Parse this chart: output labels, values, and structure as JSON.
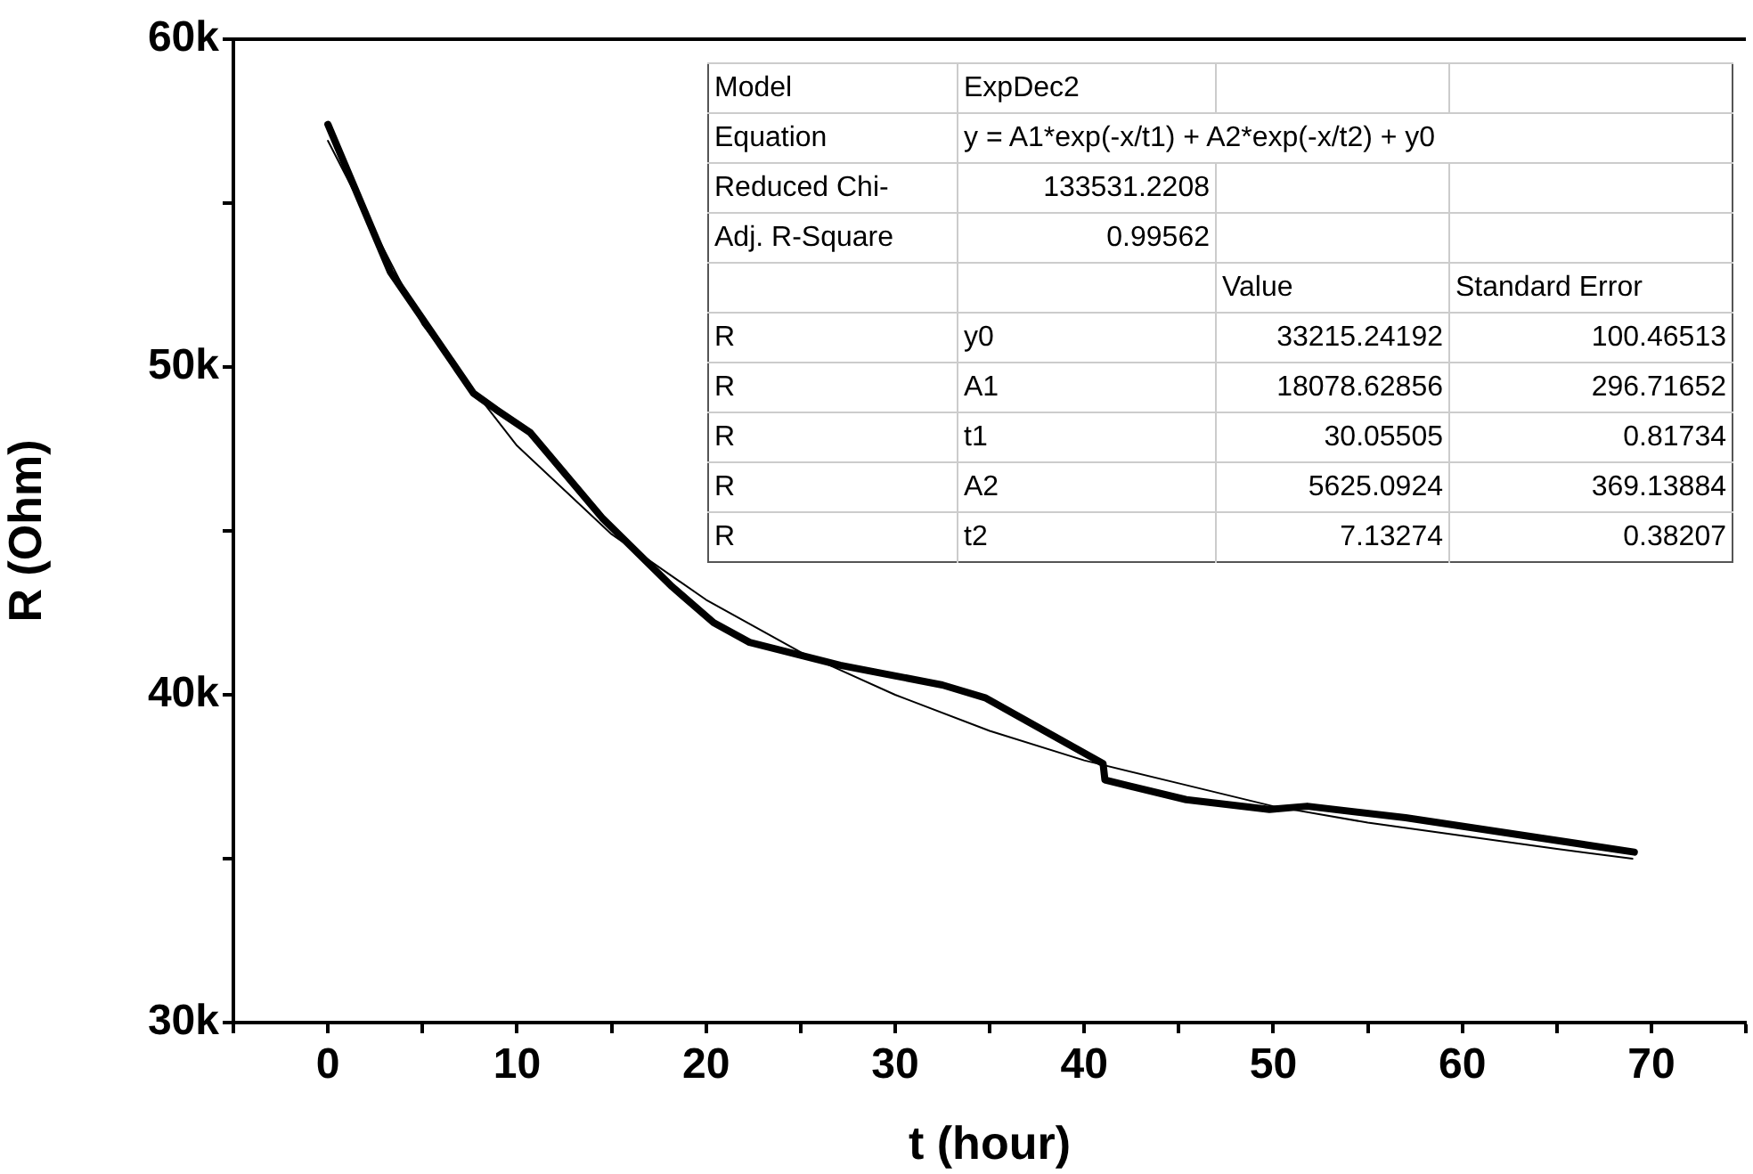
{
  "chart_data": {
    "type": "line",
    "xlabel": "t (hour)",
    "ylabel": "R (Ohm)",
    "xlim": [
      -5,
      75
    ],
    "xticks": [
      {
        "value": -5,
        "label": null
      },
      0,
      {
        "value": 5,
        "label": null
      },
      10,
      {
        "value": 15,
        "label": null
      },
      20,
      {
        "value": 25,
        "label": null
      },
      30,
      {
        "value": 35,
        "label": null
      },
      40,
      {
        "value": 45,
        "label": null
      },
      50,
      {
        "value": 55,
        "label": null
      },
      60,
      {
        "value": 65,
        "label": null
      },
      70,
      {
        "value": 75,
        "label": null
      }
    ],
    "ylim": [
      30000,
      60000
    ],
    "yticks": [
      {
        "value": 30000,
        "label": "30k"
      },
      {
        "value": 35000,
        "label": null
      },
      {
        "value": 40000,
        "label": "40k"
      },
      {
        "value": 45000,
        "label": null
      },
      {
        "value": 50000,
        "label": "50k"
      },
      {
        "value": 55000,
        "label": null
      },
      {
        "value": 60000,
        "label": "60k"
      }
    ],
    "grid": false,
    "legend": false,
    "marker": "none",
    "series": [
      {
        "color": "#000000",
        "line_style": "solid",
        "x": [
          0,
          3.3,
          7.7,
          8.9,
          10.7,
          14.5,
          18.2,
          20.4,
          22.3,
          27.1,
          32.5,
          34.8,
          41.0,
          41.1,
          45.4,
          49.8,
          51.8,
          57.0,
          69.1
        ],
        "values": [
          57400,
          52900,
          49200,
          48700,
          48000,
          45400,
          43300,
          42200,
          41600,
          40900,
          40300,
          39900,
          37900,
          37400,
          36800,
          36500,
          36600,
          36250,
          35200
        ]
      },
      {
        "color": "#000000",
        "line_style": "solid",
        "x": [
          0,
          5,
          10,
          15,
          20,
          25,
          30,
          35,
          40,
          45,
          50,
          55,
          60,
          65,
          69
        ],
        "values": [
          56900,
          51300,
          47600,
          44900,
          42900,
          41300,
          40000,
          38900,
          38000,
          37300,
          36600,
          36100,
          35700,
          35300,
          35000
        ]
      }
    ],
    "annotations": [
      "Model",
      "ExpDec2",
      "Equation",
      "y = A1*exp(-x/t1) + A2*exp(-x/t2) + y0",
      "Reduced Chi-",
      "133531.2208",
      "Adj. R-Square",
      "0.99562",
      "Value",
      "Standard Error",
      "R",
      "y0",
      "33215.24192",
      "100.46513",
      "R",
      "A1",
      "18078.62856",
      "296.71652",
      "R",
      "t1",
      "30.05505",
      "0.81734",
      "R",
      "A2",
      "5625.0924",
      "369.13884",
      "R",
      "t2",
      "7.13274",
      "0.38207"
    ]
  }
}
